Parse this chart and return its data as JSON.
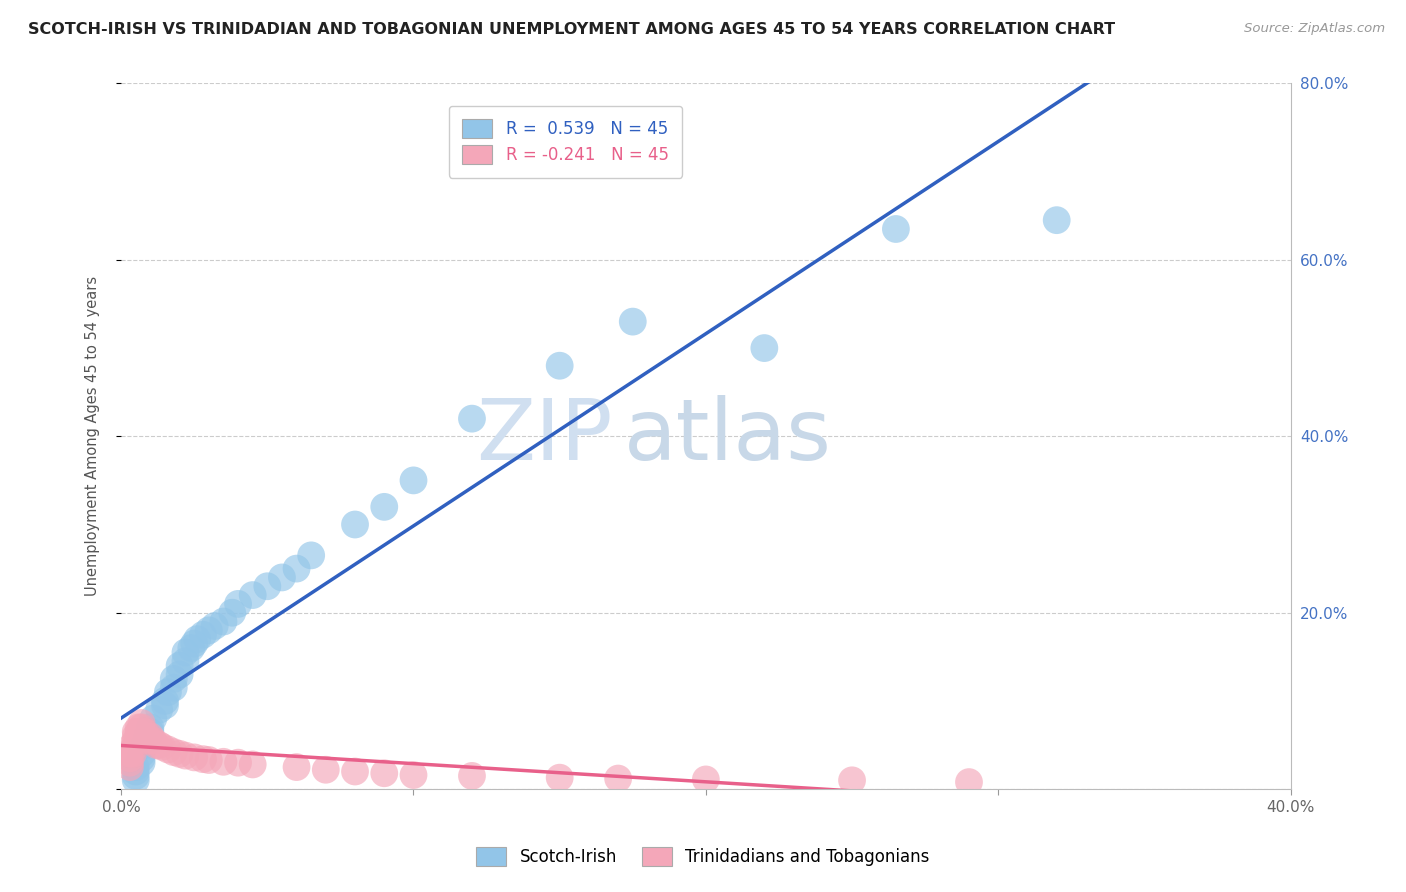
{
  "title": "SCOTCH-IRISH VS TRINIDADIAN AND TOBAGONIAN UNEMPLOYMENT AMONG AGES 45 TO 54 YEARS CORRELATION CHART",
  "source_text": "Source: ZipAtlas.com",
  "xlabel": "",
  "ylabel": "Unemployment Among Ages 45 to 54 years",
  "xlim": [
    0.0,
    0.4
  ],
  "ylim": [
    0.0,
    0.8
  ],
  "xticks": [
    0.0,
    0.1,
    0.2,
    0.3,
    0.4
  ],
  "yticks": [
    0.0,
    0.2,
    0.4,
    0.6,
    0.8
  ],
  "ytick_labels_right": [
    "",
    "20.0%",
    "40.0%",
    "60.0%",
    "80.0%"
  ],
  "xtick_labels": [
    "0.0%",
    "",
    "",
    "",
    "40.0%"
  ],
  "background_color": "#ffffff",
  "plot_bg_color": "#ffffff",
  "grid_color": "#cccccc",
  "r_blue": 0.539,
  "n_blue": 45,
  "r_pink": -0.241,
  "n_pink": 45,
  "blue_color": "#92C5E8",
  "pink_color": "#F4A7B9",
  "blue_line_color": "#3060C0",
  "pink_line_color": "#E8608A",
  "legend_label_blue": "Scotch-Irish",
  "legend_label_pink": "Trinidadians and Tobagonians",
  "watermark_zip": "ZIP",
  "watermark_atlas": "atlas",
  "scotch_irish_x": [
    0.005,
    0.005,
    0.005,
    0.005,
    0.007,
    0.007,
    0.007,
    0.008,
    0.009,
    0.01,
    0.01,
    0.011,
    0.013,
    0.015,
    0.015,
    0.016,
    0.018,
    0.018,
    0.02,
    0.02,
    0.022,
    0.022,
    0.024,
    0.025,
    0.026,
    0.028,
    0.03,
    0.032,
    0.035,
    0.038,
    0.04,
    0.045,
    0.05,
    0.055,
    0.06,
    0.065,
    0.08,
    0.09,
    0.1,
    0.12,
    0.15,
    0.175,
    0.22,
    0.265,
    0.32
  ],
  "scotch_irish_y": [
    0.01,
    0.015,
    0.02,
    0.025,
    0.03,
    0.035,
    0.04,
    0.05,
    0.06,
    0.065,
    0.07,
    0.08,
    0.09,
    0.095,
    0.1,
    0.11,
    0.115,
    0.125,
    0.13,
    0.14,
    0.145,
    0.155,
    0.16,
    0.165,
    0.17,
    0.175,
    0.18,
    0.185,
    0.19,
    0.2,
    0.21,
    0.22,
    0.23,
    0.24,
    0.25,
    0.265,
    0.3,
    0.32,
    0.35,
    0.42,
    0.48,
    0.53,
    0.5,
    0.635,
    0.645
  ],
  "trini_x": [
    0.003,
    0.003,
    0.003,
    0.003,
    0.004,
    0.004,
    0.004,
    0.005,
    0.005,
    0.005,
    0.006,
    0.006,
    0.007,
    0.007,
    0.008,
    0.008,
    0.009,
    0.009,
    0.01,
    0.01,
    0.011,
    0.012,
    0.013,
    0.014,
    0.016,
    0.018,
    0.02,
    0.022,
    0.025,
    0.028,
    0.03,
    0.035,
    0.04,
    0.045,
    0.06,
    0.07,
    0.08,
    0.09,
    0.1,
    0.12,
    0.15,
    0.17,
    0.2,
    0.25,
    0.29
  ],
  "trini_y": [
    0.025,
    0.03,
    0.035,
    0.04,
    0.04,
    0.045,
    0.05,
    0.055,
    0.06,
    0.065,
    0.065,
    0.07,
    0.07,
    0.075,
    0.06,
    0.065,
    0.055,
    0.06,
    0.055,
    0.06,
    0.055,
    0.05,
    0.05,
    0.048,
    0.045,
    0.042,
    0.04,
    0.038,
    0.036,
    0.034,
    0.033,
    0.031,
    0.03,
    0.028,
    0.025,
    0.022,
    0.02,
    0.018,
    0.016,
    0.015,
    0.013,
    0.012,
    0.011,
    0.01,
    0.008
  ]
}
